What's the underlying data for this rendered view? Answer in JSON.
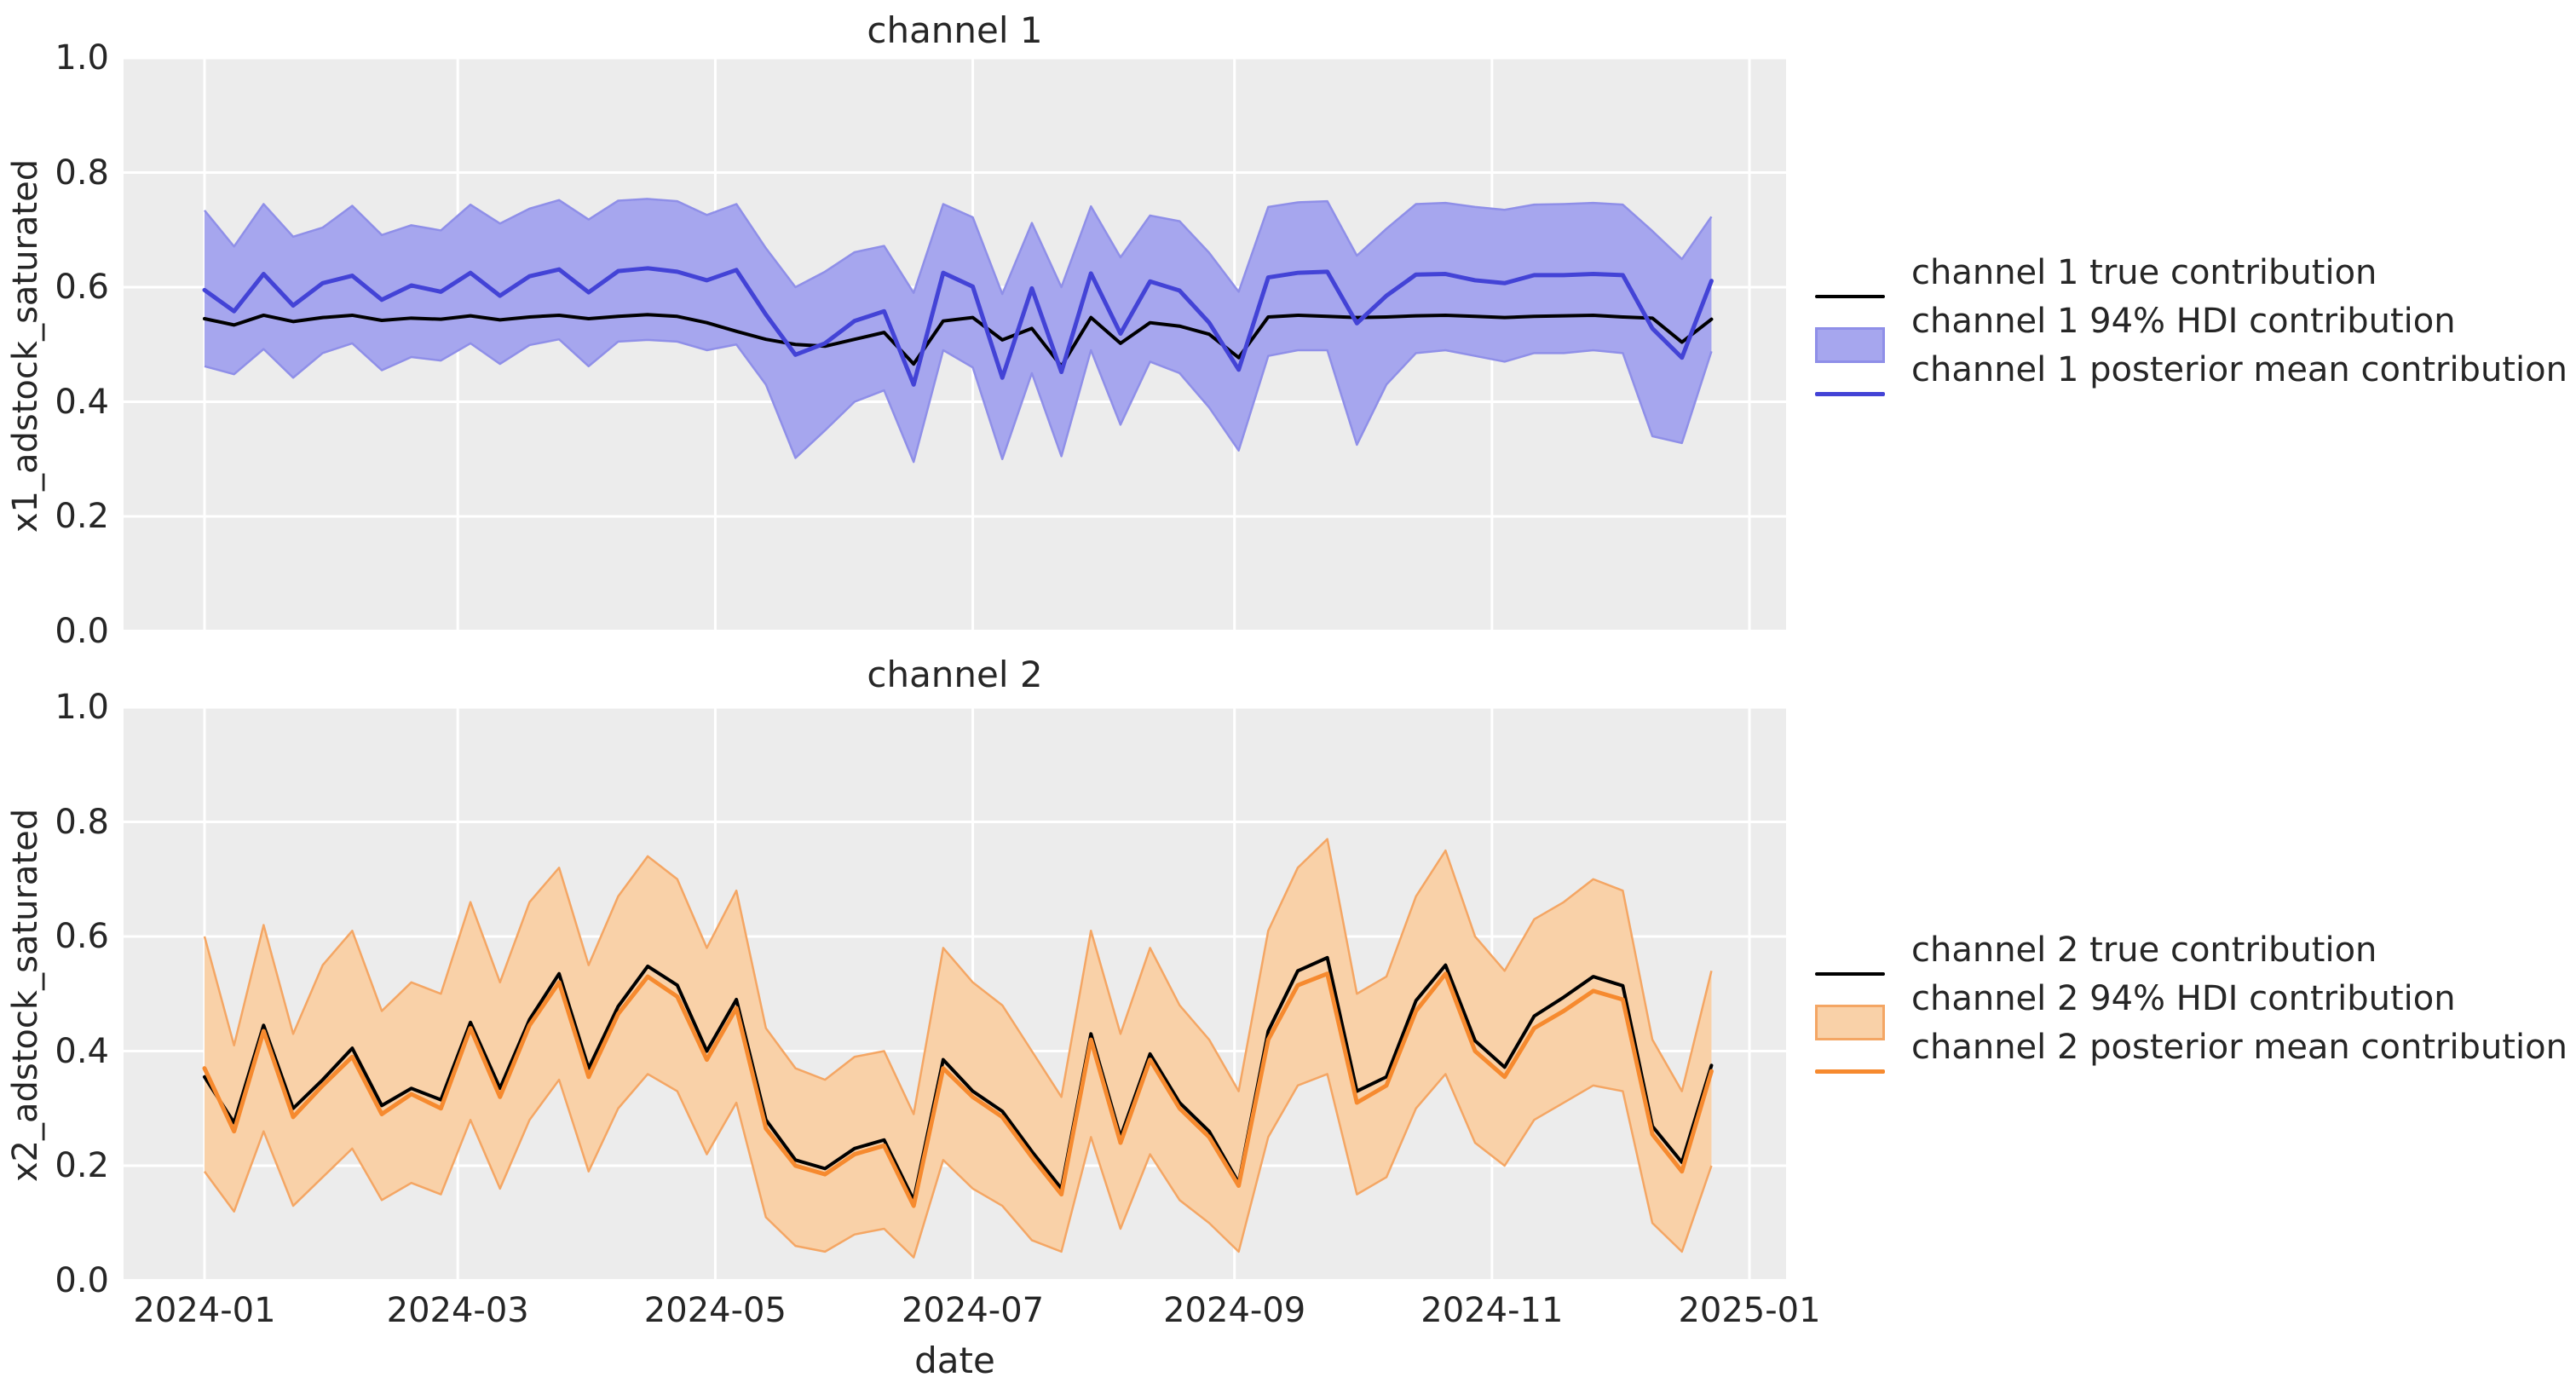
{
  "figure": {
    "background": "#ffffff",
    "plot_background": "#ececec",
    "gridline_color": "#ffffff",
    "text_color": "#262626"
  },
  "xaxis": {
    "label": "date",
    "ticks": [
      {
        "label": "2024-01",
        "date": "2024-01-01"
      },
      {
        "label": "2024-03",
        "date": "2024-03-01"
      },
      {
        "label": "2024-05",
        "date": "2024-05-01"
      },
      {
        "label": "2024-07",
        "date": "2024-07-01"
      },
      {
        "label": "2024-09",
        "date": "2024-09-01"
      },
      {
        "label": "2024-11",
        "date": "2024-11-01"
      },
      {
        "label": "2025-01",
        "date": "2025-01-01"
      }
    ]
  },
  "yaxis": {
    "ticks": [
      {
        "value": 0.0,
        "label": "0.0"
      },
      {
        "value": 0.2,
        "label": "0.2"
      },
      {
        "value": 0.4,
        "label": "0.4"
      },
      {
        "value": 0.6,
        "label": "0.6"
      },
      {
        "value": 0.8,
        "label": "0.8"
      },
      {
        "value": 1.0,
        "label": "1.0"
      }
    ]
  },
  "chart_data": [
    {
      "type": "line",
      "title": "channel 1",
      "ylabel": "x1_adstock_saturated",
      "xlabel": "date",
      "ylim": [
        0.0,
        1.0
      ],
      "grid": true,
      "legend_position": "right",
      "x_dates": [
        "2024-01-01",
        "2024-01-08",
        "2024-01-15",
        "2024-01-22",
        "2024-01-29",
        "2024-02-05",
        "2024-02-12",
        "2024-02-19",
        "2024-02-26",
        "2024-03-04",
        "2024-03-11",
        "2024-03-18",
        "2024-03-25",
        "2024-04-01",
        "2024-04-08",
        "2024-04-15",
        "2024-04-22",
        "2024-04-29",
        "2024-05-06",
        "2024-05-13",
        "2024-05-20",
        "2024-05-27",
        "2024-06-03",
        "2024-06-10",
        "2024-06-17",
        "2024-06-24",
        "2024-07-01",
        "2024-07-08",
        "2024-07-15",
        "2024-07-22",
        "2024-07-29",
        "2024-08-05",
        "2024-08-12",
        "2024-08-19",
        "2024-08-26",
        "2024-09-02",
        "2024-09-09",
        "2024-09-16",
        "2024-09-23",
        "2024-09-30",
        "2024-10-07",
        "2024-10-14",
        "2024-10-21",
        "2024-10-28",
        "2024-11-04",
        "2024-11-11",
        "2024-11-18",
        "2024-11-25",
        "2024-12-02",
        "2024-12-09",
        "2024-12-16",
        "2024-12-23"
      ],
      "series": [
        {
          "name": "channel 1 true contribution",
          "type": "line",
          "color": "#000000",
          "width": 4,
          "values": [
            0.545,
            0.534,
            0.551,
            0.54,
            0.547,
            0.551,
            0.542,
            0.546,
            0.544,
            0.55,
            0.543,
            0.548,
            0.551,
            0.545,
            0.549,
            0.552,
            0.549,
            0.538,
            0.523,
            0.509,
            0.5,
            0.497,
            0.509,
            0.521,
            0.466,
            0.541,
            0.547,
            0.508,
            0.528,
            0.462,
            0.547,
            0.502,
            0.538,
            0.532,
            0.518,
            0.477,
            0.548,
            0.551,
            0.549,
            0.547,
            0.548,
            0.55,
            0.551,
            0.549,
            0.547,
            0.549,
            0.55,
            0.551,
            0.548,
            0.546,
            0.504,
            0.544
          ]
        },
        {
          "name": "channel 1 94% HDI contribution",
          "type": "band",
          "fill": "#a6a6ee",
          "edge": "#8f8fe8",
          "lower": [
            0.462,
            0.448,
            0.492,
            0.442,
            0.485,
            0.502,
            0.455,
            0.478,
            0.472,
            0.502,
            0.466,
            0.499,
            0.509,
            0.462,
            0.505,
            0.508,
            0.505,
            0.49,
            0.5,
            0.43,
            0.302,
            0.35,
            0.4,
            0.42,
            0.295,
            0.49,
            0.46,
            0.3,
            0.45,
            0.305,
            0.49,
            0.36,
            0.47,
            0.45,
            0.39,
            0.315,
            0.48,
            0.49,
            0.49,
            0.325,
            0.43,
            0.485,
            0.49,
            0.48,
            0.47,
            0.485,
            0.485,
            0.49,
            0.485,
            0.34,
            0.328,
            0.488
          ],
          "upper": [
            0.734,
            0.671,
            0.745,
            0.688,
            0.704,
            0.742,
            0.691,
            0.708,
            0.699,
            0.744,
            0.711,
            0.737,
            0.752,
            0.718,
            0.751,
            0.754,
            0.75,
            0.726,
            0.745,
            0.668,
            0.6,
            0.627,
            0.661,
            0.672,
            0.59,
            0.745,
            0.722,
            0.588,
            0.712,
            0.6,
            0.741,
            0.652,
            0.725,
            0.715,
            0.66,
            0.592,
            0.74,
            0.748,
            0.75,
            0.655,
            0.702,
            0.745,
            0.747,
            0.74,
            0.735,
            0.744,
            0.745,
            0.747,
            0.744,
            0.698,
            0.649,
            0.723
          ]
        },
        {
          "name": "channel 1 posterior mean contribution",
          "type": "line",
          "color": "#4343d6",
          "width": 5,
          "values": [
            0.595,
            0.558,
            0.623,
            0.568,
            0.607,
            0.62,
            0.578,
            0.603,
            0.592,
            0.625,
            0.585,
            0.619,
            0.631,
            0.591,
            0.628,
            0.633,
            0.627,
            0.612,
            0.63,
            0.552,
            0.482,
            0.502,
            0.541,
            0.558,
            0.43,
            0.625,
            0.601,
            0.442,
            0.598,
            0.452,
            0.624,
            0.519,
            0.61,
            0.594,
            0.538,
            0.456,
            0.617,
            0.625,
            0.627,
            0.537,
            0.585,
            0.622,
            0.623,
            0.612,
            0.607,
            0.621,
            0.621,
            0.623,
            0.621,
            0.528,
            0.477,
            0.611
          ]
        }
      ]
    },
    {
      "type": "line",
      "title": "channel 2",
      "ylabel": "x2_adstock_saturated",
      "xlabel": "date",
      "ylim": [
        0.0,
        1.0
      ],
      "grid": true,
      "legend_position": "right",
      "x_dates": [
        "2024-01-01",
        "2024-01-08",
        "2024-01-15",
        "2024-01-22",
        "2024-01-29",
        "2024-02-05",
        "2024-02-12",
        "2024-02-19",
        "2024-02-26",
        "2024-03-04",
        "2024-03-11",
        "2024-03-18",
        "2024-03-25",
        "2024-04-01",
        "2024-04-08",
        "2024-04-15",
        "2024-04-22",
        "2024-04-29",
        "2024-05-06",
        "2024-05-13",
        "2024-05-20",
        "2024-05-27",
        "2024-06-03",
        "2024-06-10",
        "2024-06-17",
        "2024-06-24",
        "2024-07-01",
        "2024-07-08",
        "2024-07-15",
        "2024-07-22",
        "2024-07-29",
        "2024-08-05",
        "2024-08-12",
        "2024-08-19",
        "2024-08-26",
        "2024-09-02",
        "2024-09-09",
        "2024-09-16",
        "2024-09-23",
        "2024-09-30",
        "2024-10-07",
        "2024-10-14",
        "2024-10-21",
        "2024-10-28",
        "2024-11-04",
        "2024-11-11",
        "2024-11-18",
        "2024-11-25",
        "2024-12-02",
        "2024-12-09",
        "2024-12-16",
        "2024-12-23"
      ],
      "series": [
        {
          "name": "channel 2 true contribution",
          "type": "line",
          "color": "#000000",
          "width": 4,
          "values": [
            0.355,
            0.275,
            0.445,
            0.3,
            0.35,
            0.405,
            0.305,
            0.335,
            0.315,
            0.45,
            0.335,
            0.455,
            0.535,
            0.37,
            0.478,
            0.548,
            0.515,
            0.4,
            0.49,
            0.28,
            0.21,
            0.195,
            0.23,
            0.245,
            0.14,
            0.385,
            0.33,
            0.295,
            0.225,
            0.16,
            0.43,
            0.25,
            0.395,
            0.31,
            0.26,
            0.17,
            0.435,
            0.54,
            0.563,
            0.33,
            0.355,
            0.488,
            0.55,
            0.418,
            0.372,
            0.461,
            0.494,
            0.53,
            0.514,
            0.269,
            0.206,
            0.375
          ]
        },
        {
          "name": "channel 2 94% HDI contribution",
          "type": "band",
          "fill": "#f9d1a8",
          "edge": "#f4a664",
          "lower": [
            0.19,
            0.12,
            0.26,
            0.13,
            0.18,
            0.23,
            0.14,
            0.17,
            0.15,
            0.28,
            0.16,
            0.28,
            0.35,
            0.19,
            0.3,
            0.36,
            0.33,
            0.22,
            0.31,
            0.11,
            0.06,
            0.05,
            0.08,
            0.09,
            0.04,
            0.21,
            0.16,
            0.13,
            0.07,
            0.05,
            0.25,
            0.09,
            0.22,
            0.14,
            0.1,
            0.05,
            0.25,
            0.34,
            0.36,
            0.15,
            0.18,
            0.3,
            0.36,
            0.24,
            0.2,
            0.28,
            0.31,
            0.34,
            0.33,
            0.1,
            0.05,
            0.2
          ],
          "upper": [
            0.6,
            0.41,
            0.62,
            0.43,
            0.55,
            0.61,
            0.47,
            0.52,
            0.5,
            0.66,
            0.52,
            0.66,
            0.72,
            0.55,
            0.67,
            0.74,
            0.7,
            0.58,
            0.68,
            0.44,
            0.37,
            0.35,
            0.39,
            0.4,
            0.29,
            0.58,
            0.52,
            0.48,
            0.4,
            0.32,
            0.61,
            0.43,
            0.58,
            0.48,
            0.42,
            0.33,
            0.61,
            0.72,
            0.77,
            0.5,
            0.53,
            0.67,
            0.75,
            0.6,
            0.54,
            0.63,
            0.66,
            0.7,
            0.68,
            0.42,
            0.33,
            0.54
          ]
        },
        {
          "name": "channel 2 posterior mean contribution",
          "type": "line",
          "color": "#f68a2f",
          "width": 5,
          "values": [
            0.37,
            0.26,
            0.435,
            0.285,
            0.34,
            0.39,
            0.29,
            0.325,
            0.3,
            0.44,
            0.32,
            0.445,
            0.52,
            0.355,
            0.465,
            0.53,
            0.495,
            0.385,
            0.475,
            0.265,
            0.2,
            0.185,
            0.22,
            0.235,
            0.13,
            0.37,
            0.32,
            0.285,
            0.215,
            0.15,
            0.42,
            0.24,
            0.385,
            0.3,
            0.25,
            0.165,
            0.42,
            0.515,
            0.535,
            0.31,
            0.34,
            0.47,
            0.535,
            0.4,
            0.355,
            0.44,
            0.47,
            0.505,
            0.49,
            0.255,
            0.19,
            0.365
          ]
        }
      ]
    }
  ]
}
